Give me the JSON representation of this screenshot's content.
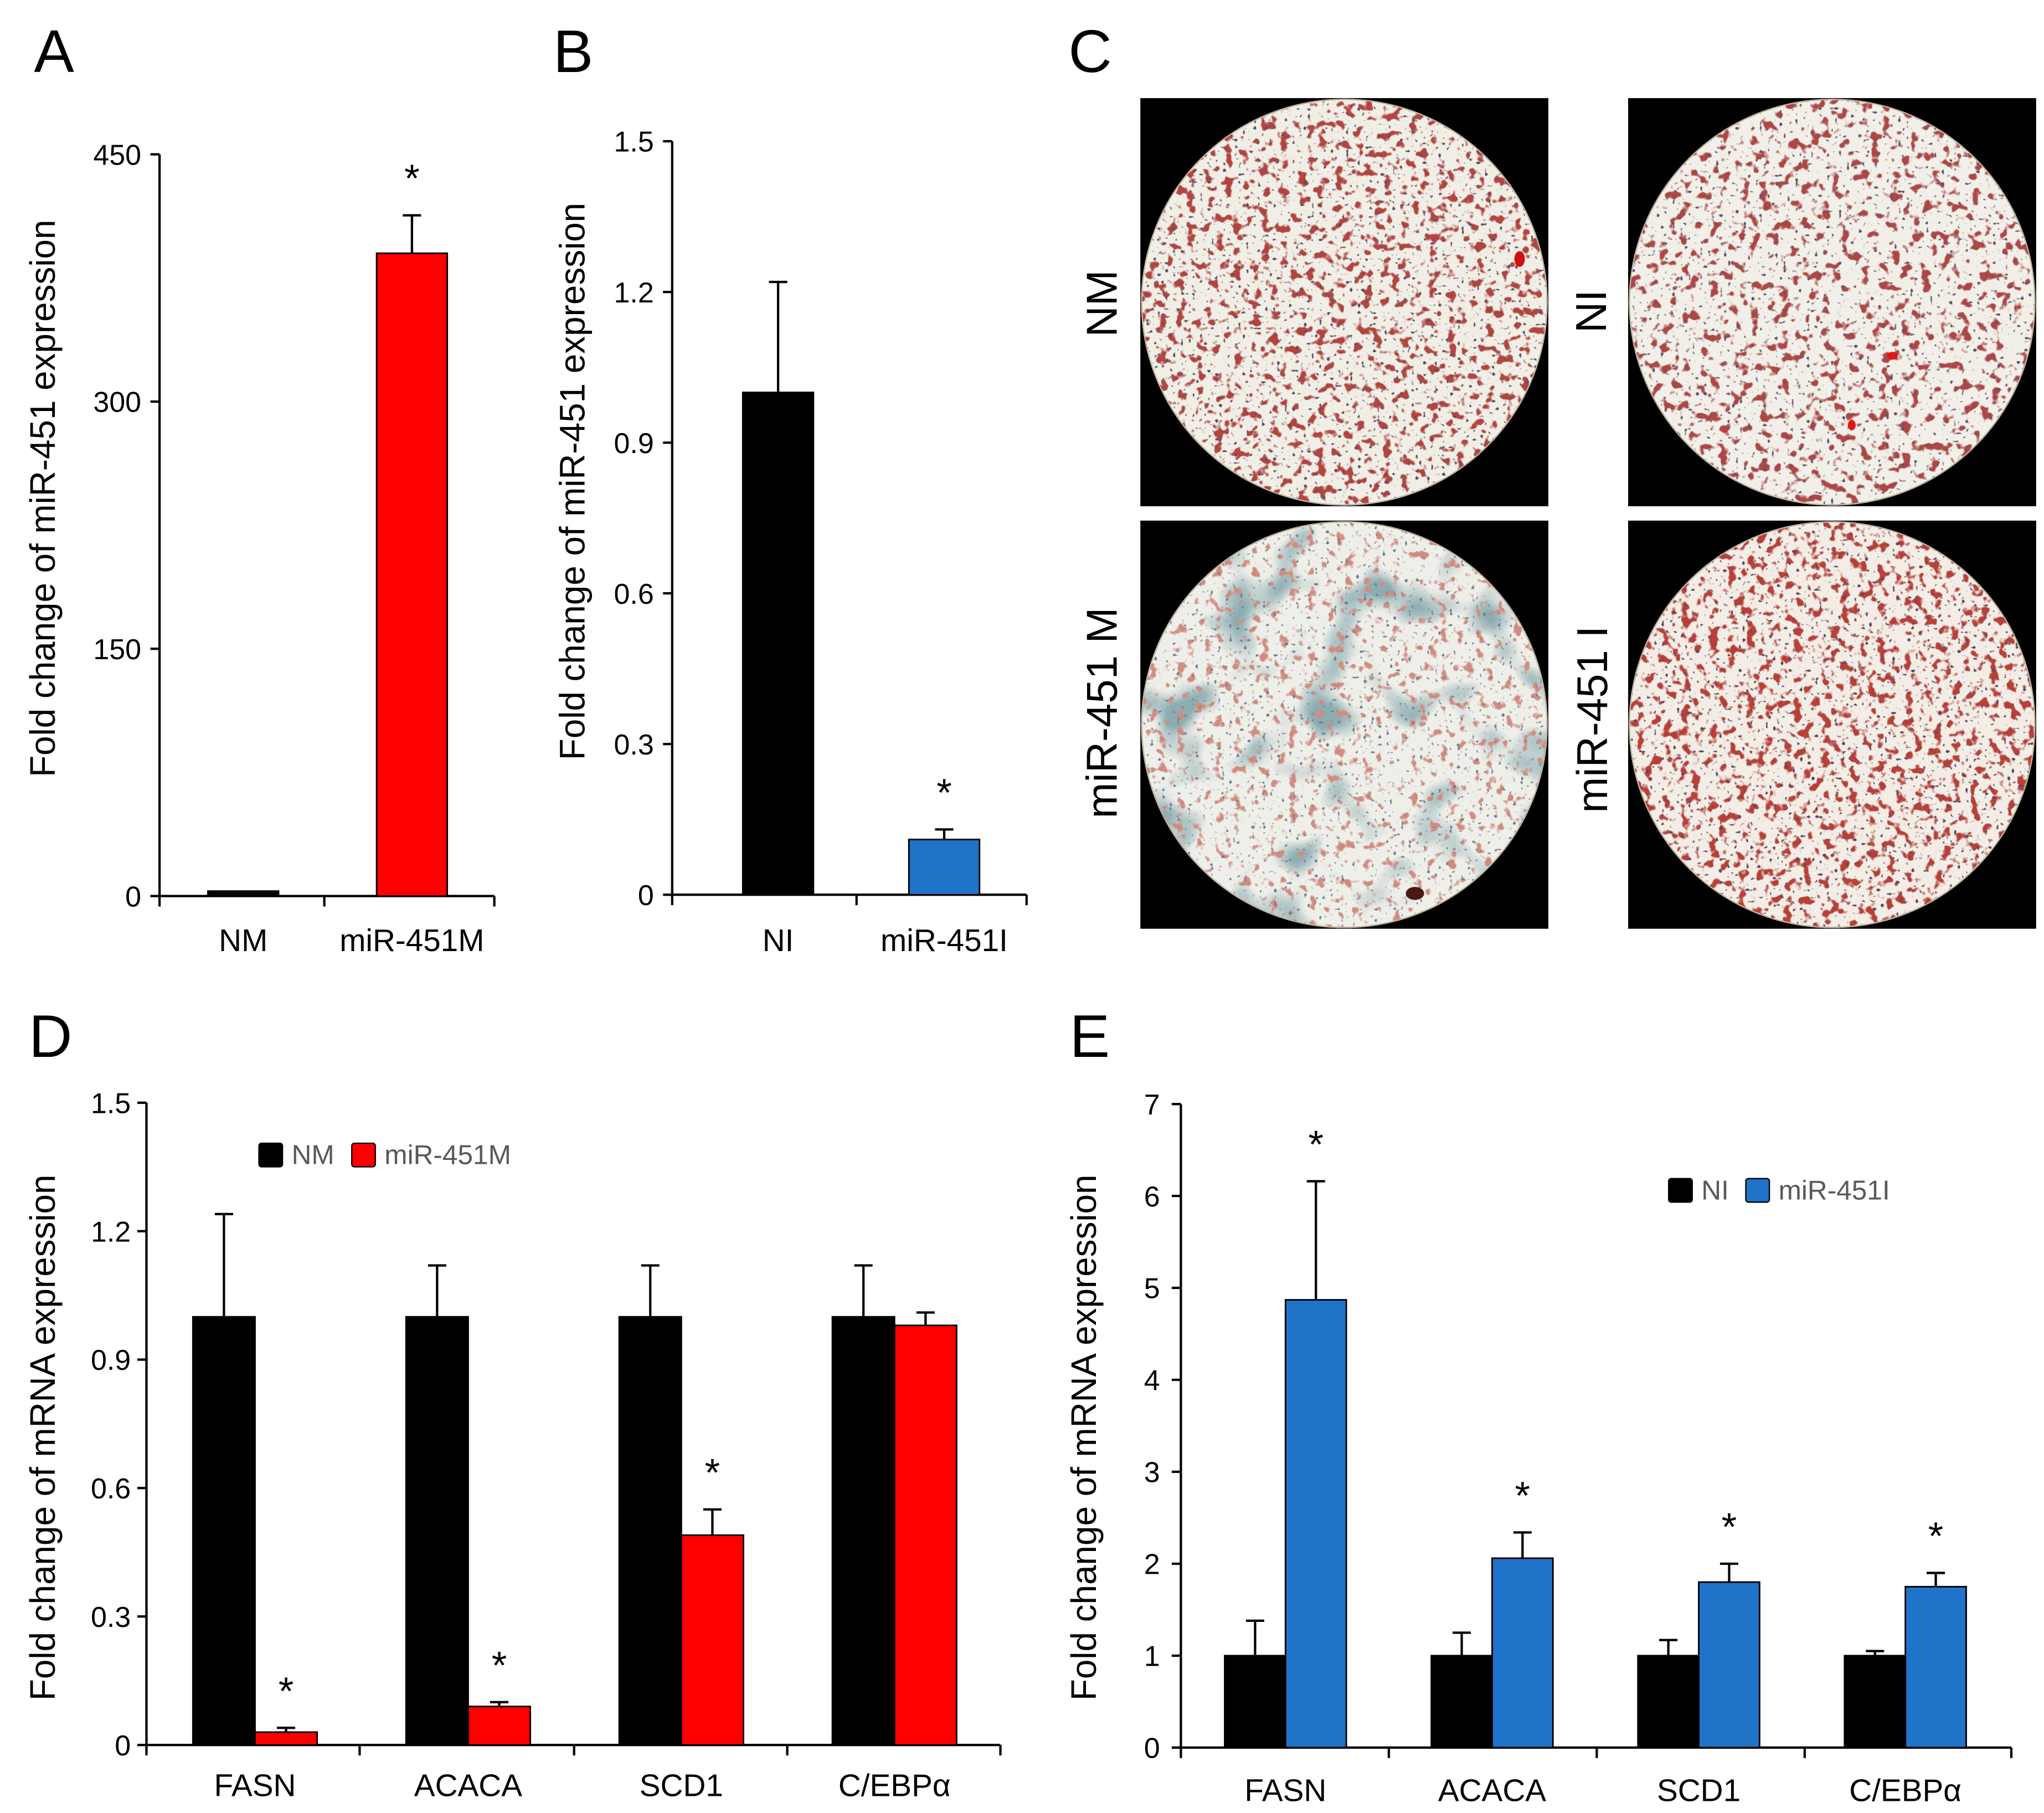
{
  "micrograph_panel": {
    "panel": "C",
    "images": [
      {
        "label": "NM"
      },
      {
        "label": "NI"
      },
      {
        "label": "miR-451 M"
      },
      {
        "label": "miR-451 I"
      }
    ]
  },
  "chart_data": [
    {
      "panel": "A",
      "type": "bar",
      "categories": [
        "NM",
        "miR-451M"
      ],
      "values": [
        3,
        390
      ],
      "errors": [
        0,
        23
      ],
      "colors": [
        "#000000",
        "#ff0000"
      ],
      "significant": [
        false,
        true
      ],
      "significance_marker": "*",
      "ylabel": "Fold change of miR-451 expression",
      "ylim": [
        0,
        450
      ],
      "yticks": [
        0,
        150,
        300,
        450
      ],
      "ytick_labels": [
        "0",
        "150",
        "300",
        "450"
      ]
    },
    {
      "panel": "B",
      "type": "bar",
      "categories": [
        "NI",
        "miR-451I"
      ],
      "values": [
        1.0,
        0.11
      ],
      "errors": [
        0.22,
        0.02
      ],
      "colors": [
        "#000000",
        "#1f73c8"
      ],
      "significant": [
        false,
        true
      ],
      "significance_marker": "*",
      "ylabel": "Fold change of miR-451 expression",
      "ylim": [
        0,
        1.5
      ],
      "yticks": [
        0,
        0.3,
        0.6,
        0.9,
        1.2,
        1.5
      ],
      "ytick_labels": [
        "0",
        "0.3",
        "0.6",
        "0.9",
        "1.2",
        "1.5"
      ]
    },
    {
      "panel": "D",
      "type": "bar",
      "categories": [
        "FASN",
        "ACACA",
        "SCD1",
        "C/EBPα"
      ],
      "series": [
        {
          "name": "NM",
          "color": "#000000",
          "values": [
            1.0,
            1.0,
            1.0,
            1.0
          ],
          "errors": [
            0.24,
            0.12,
            0.12,
            0.12
          ],
          "significant": [
            false,
            false,
            false,
            false
          ]
        },
        {
          "name": "miR-451M",
          "color": "#ff0000",
          "values": [
            0.03,
            0.09,
            0.49,
            0.98
          ],
          "errors": [
            0.01,
            0.01,
            0.06,
            0.03
          ],
          "significant": [
            true,
            true,
            true,
            false
          ]
        }
      ],
      "significance_marker": "*",
      "legend": "top-center",
      "ylabel": "Fold change of mRNA expression",
      "ylim": [
        0,
        1.5
      ],
      "yticks": [
        0,
        0.3,
        0.6,
        0.9,
        1.2,
        1.5
      ],
      "ytick_labels": [
        "0",
        "0.3",
        "0.6",
        "0.9",
        "1.2",
        "1.5"
      ]
    },
    {
      "panel": "E",
      "type": "bar",
      "categories": [
        "FASN",
        "ACACA",
        "SCD1",
        "C/EBPα"
      ],
      "series": [
        {
          "name": "NI",
          "color": "#000000",
          "values": [
            1.0,
            1.0,
            1.0,
            1.0
          ],
          "errors": [
            0.38,
            0.25,
            0.17,
            0.05
          ],
          "significant": [
            false,
            false,
            false,
            false
          ]
        },
        {
          "name": "miR-451I",
          "color": "#1f73c8",
          "values": [
            4.87,
            2.06,
            1.8,
            1.75
          ],
          "errors": [
            1.29,
            0.28,
            0.2,
            0.15
          ],
          "significant": [
            true,
            true,
            true,
            true
          ]
        }
      ],
      "significance_marker": "*",
      "legend": "top-right",
      "ylabel": "Fold change of mRNA expression",
      "ylim": [
        0,
        7
      ],
      "yticks": [
        0,
        1,
        2,
        3,
        4,
        5,
        6,
        7
      ],
      "ytick_labels": [
        "0",
        "1",
        "2",
        "3",
        "4",
        "5",
        "6",
        "7"
      ]
    }
  ]
}
